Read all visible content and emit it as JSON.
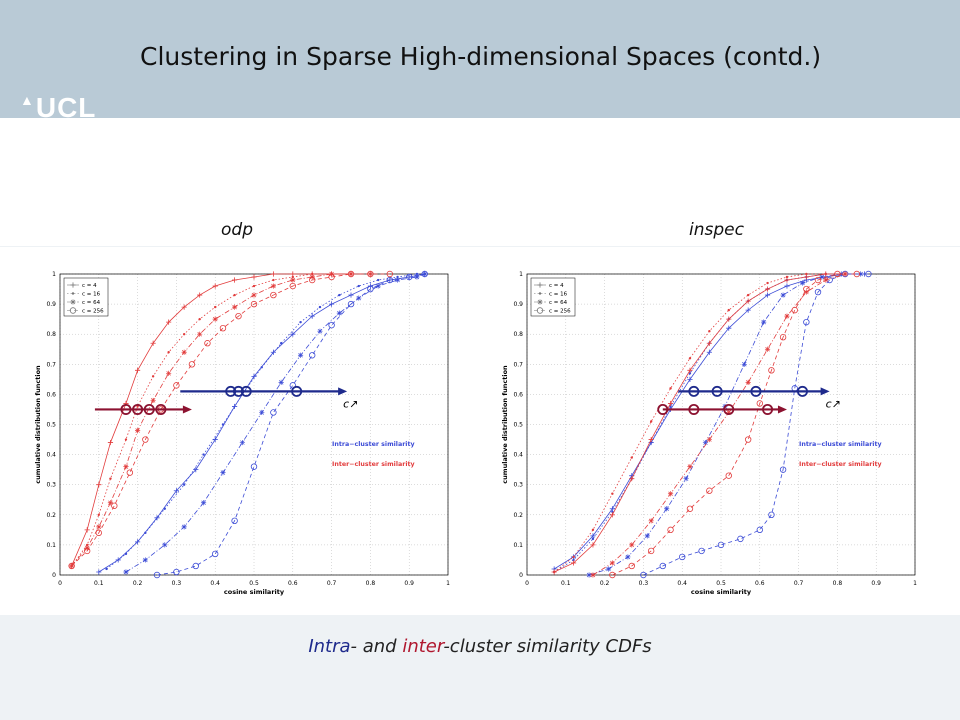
{
  "slide": {
    "title": "Clustering in Sparse High-dimensional Spaces (contd.)",
    "logo_text": "UCL",
    "caption": {
      "part1": "Intra",
      "part2": "- and ",
      "part3": "inter",
      "part4": "-cluster similarity CDFs"
    }
  },
  "colors": {
    "intra": "#3b4bd6",
    "inter": "#e23c3c",
    "arrow_intra": "#1e2a8c",
    "arrow_inter": "#8c1230"
  },
  "chart_data": [
    {
      "type": "line",
      "title": "odp",
      "xlabel": "cosine similarity",
      "ylabel": "cumulative distribution function",
      "xlim": [
        0,
        1
      ],
      "ylim": [
        0,
        1
      ],
      "xticks": [
        "0",
        "0.1",
        "0.2",
        "0.3",
        "0.4",
        "0.5",
        "0.6",
        "0.7",
        "0.8",
        "0.9",
        "1"
      ],
      "yticks": [
        "0",
        "0.1",
        "0.2",
        "0.3",
        "0.4",
        "0.5",
        "0.6",
        "0.7",
        "0.8",
        "0.9",
        "1"
      ],
      "grid": true,
      "legend": {
        "placement": "top-left",
        "entries": [
          "c = 4",
          "c = 16",
          "c = 64",
          "c = 256"
        ]
      },
      "annotations": [
        "Intra−cluster similarity",
        "Inter−cluster similarity"
      ],
      "arrow_label": "c↗",
      "series": [
        {
          "group": "intra",
          "marker": "plus",
          "x": [
            0.1,
            0.15,
            0.2,
            0.25,
            0.3,
            0.35,
            0.4,
            0.45,
            0.5,
            0.55,
            0.6,
            0.65,
            0.7,
            0.75,
            0.8,
            0.85,
            0.9,
            0.94
          ],
          "y": [
            0.01,
            0.05,
            0.11,
            0.19,
            0.28,
            0.35,
            0.45,
            0.56,
            0.66,
            0.74,
            0.8,
            0.86,
            0.9,
            0.93,
            0.96,
            0.98,
            0.99,
            1.0
          ]
        },
        {
          "group": "intra",
          "marker": "dot",
          "x": [
            0.12,
            0.17,
            0.22,
            0.27,
            0.32,
            0.37,
            0.42,
            0.47,
            0.52,
            0.57,
            0.62,
            0.67,
            0.72,
            0.77,
            0.82,
            0.87,
            0.92,
            0.94
          ],
          "y": [
            0.02,
            0.07,
            0.14,
            0.22,
            0.3,
            0.4,
            0.5,
            0.6,
            0.69,
            0.77,
            0.84,
            0.89,
            0.93,
            0.96,
            0.98,
            0.99,
            1.0,
            1.0
          ]
        },
        {
          "group": "intra",
          "marker": "star",
          "x": [
            0.17,
            0.22,
            0.27,
            0.32,
            0.37,
            0.42,
            0.47,
            0.52,
            0.57,
            0.62,
            0.67,
            0.72,
            0.77,
            0.82,
            0.87,
            0.92,
            0.94
          ],
          "y": [
            0.01,
            0.05,
            0.1,
            0.16,
            0.24,
            0.34,
            0.44,
            0.54,
            0.64,
            0.73,
            0.81,
            0.87,
            0.92,
            0.96,
            0.98,
            0.99,
            1.0
          ]
        },
        {
          "group": "intra",
          "marker": "circle",
          "x": [
            0.25,
            0.3,
            0.35,
            0.4,
            0.45,
            0.5,
            0.55,
            0.6,
            0.65,
            0.7,
            0.75,
            0.8,
            0.85,
            0.9,
            0.94
          ],
          "y": [
            0.0,
            0.01,
            0.03,
            0.07,
            0.18,
            0.36,
            0.54,
            0.63,
            0.73,
            0.83,
            0.9,
            0.95,
            0.98,
            0.99,
            1.0
          ]
        },
        {
          "group": "inter",
          "marker": "plus",
          "x": [
            0.03,
            0.07,
            0.1,
            0.13,
            0.17,
            0.2,
            0.24,
            0.28,
            0.32,
            0.36,
            0.4,
            0.45,
            0.5,
            0.55,
            0.6,
            0.65,
            0.7,
            0.75
          ],
          "y": [
            0.03,
            0.15,
            0.3,
            0.44,
            0.57,
            0.68,
            0.77,
            0.84,
            0.89,
            0.93,
            0.96,
            0.98,
            0.99,
            1.0,
            1.0,
            1.0,
            1.0,
            1.0
          ]
        },
        {
          "group": "inter",
          "marker": "dot",
          "x": [
            0.03,
            0.07,
            0.1,
            0.13,
            0.17,
            0.2,
            0.24,
            0.28,
            0.32,
            0.36,
            0.4,
            0.45,
            0.5,
            0.55,
            0.6,
            0.65,
            0.7,
            0.75
          ],
          "y": [
            0.03,
            0.1,
            0.2,
            0.32,
            0.45,
            0.56,
            0.66,
            0.74,
            0.8,
            0.85,
            0.89,
            0.93,
            0.96,
            0.98,
            0.99,
            1.0,
            1.0,
            1.0
          ]
        },
        {
          "group": "inter",
          "marker": "star",
          "x": [
            0.03,
            0.07,
            0.1,
            0.13,
            0.17,
            0.2,
            0.24,
            0.28,
            0.32,
            0.36,
            0.4,
            0.45,
            0.5,
            0.55,
            0.6,
            0.65,
            0.7,
            0.75,
            0.8
          ],
          "y": [
            0.03,
            0.09,
            0.16,
            0.24,
            0.36,
            0.48,
            0.58,
            0.67,
            0.74,
            0.8,
            0.85,
            0.89,
            0.93,
            0.96,
            0.98,
            0.99,
            1.0,
            1.0,
            1.0
          ]
        },
        {
          "group": "inter",
          "marker": "circle",
          "x": [
            0.03,
            0.07,
            0.1,
            0.14,
            0.18,
            0.22,
            0.26,
            0.3,
            0.34,
            0.38,
            0.42,
            0.46,
            0.5,
            0.55,
            0.6,
            0.65,
            0.7,
            0.75,
            0.8,
            0.85
          ],
          "y": [
            0.03,
            0.08,
            0.14,
            0.23,
            0.34,
            0.45,
            0.55,
            0.63,
            0.7,
            0.77,
            0.82,
            0.86,
            0.9,
            0.93,
            0.96,
            0.98,
            0.99,
            1.0,
            1.0,
            1.0
          ]
        }
      ],
      "arrows": [
        {
          "group": "intra",
          "y": 0.61,
          "x_from": 0.31,
          "x_to": 0.74,
          "circles_x": [
            0.44,
            0.46,
            0.48,
            0.61
          ]
        },
        {
          "group": "inter",
          "y": 0.55,
          "x_from": 0.09,
          "x_to": 0.34,
          "circles_x": [
            0.17,
            0.2,
            0.23,
            0.26
          ]
        }
      ]
    },
    {
      "type": "line",
      "title": "inspec",
      "xlabel": "cosine similarity",
      "ylabel": "cumulative distribution function",
      "xlim": [
        0,
        1
      ],
      "ylim": [
        0,
        1
      ],
      "xticks": [
        "0",
        "0.1",
        "0.2",
        "0.3",
        "0.4",
        "0.5",
        "0.6",
        "0.7",
        "0.8",
        "0.9",
        "1"
      ],
      "yticks": [
        "0",
        "0.1",
        "0.2",
        "0.3",
        "0.4",
        "0.5",
        "0.6",
        "0.7",
        "0.8",
        "0.9",
        "1"
      ],
      "grid": true,
      "legend": {
        "placement": "top-left",
        "entries": [
          "c = 4",
          "c = 16",
          "c = 64",
          "c = 256"
        ]
      },
      "annotations": [
        "Intra−cluster similarity",
        "Inter−cluster similarity"
      ],
      "arrow_label": "c↗",
      "series": [
        {
          "group": "intra",
          "marker": "plus",
          "x": [
            0.07,
            0.12,
            0.17,
            0.22,
            0.27,
            0.32,
            0.37,
            0.42,
            0.47,
            0.52,
            0.57,
            0.62,
            0.67,
            0.72,
            0.77,
            0.82,
            0.87
          ],
          "y": [
            0.02,
            0.06,
            0.13,
            0.22,
            0.33,
            0.44,
            0.55,
            0.65,
            0.74,
            0.82,
            0.88,
            0.93,
            0.96,
            0.98,
            0.99,
            1.0,
            1.0
          ]
        },
        {
          "group": "intra",
          "marker": "dot",
          "x": [
            0.07,
            0.12,
            0.17,
            0.22,
            0.27,
            0.32,
            0.37,
            0.42,
            0.47,
            0.52,
            0.57,
            0.62,
            0.67,
            0.72,
            0.77,
            0.82
          ],
          "y": [
            0.01,
            0.05,
            0.12,
            0.21,
            0.32,
            0.44,
            0.56,
            0.67,
            0.77,
            0.85,
            0.91,
            0.95,
            0.98,
            0.99,
            1.0,
            1.0
          ]
        },
        {
          "group": "intra",
          "marker": "star",
          "x": [
            0.16,
            0.21,
            0.26,
            0.31,
            0.36,
            0.41,
            0.46,
            0.51,
            0.56,
            0.61,
            0.66,
            0.71,
            0.76,
            0.81,
            0.86
          ],
          "y": [
            0.0,
            0.02,
            0.06,
            0.13,
            0.22,
            0.32,
            0.44,
            0.56,
            0.7,
            0.84,
            0.93,
            0.97,
            0.99,
            1.0,
            1.0
          ]
        },
        {
          "group": "intra",
          "marker": "circle",
          "x": [
            0.3,
            0.35,
            0.4,
            0.45,
            0.5,
            0.55,
            0.6,
            0.63,
            0.66,
            0.69,
            0.72,
            0.75,
            0.78,
            0.82,
            0.88
          ],
          "y": [
            0.0,
            0.03,
            0.06,
            0.08,
            0.1,
            0.12,
            0.15,
            0.2,
            0.35,
            0.62,
            0.84,
            0.94,
            0.98,
            1.0,
            1.0
          ]
        },
        {
          "group": "inter",
          "marker": "plus",
          "x": [
            0.07,
            0.12,
            0.17,
            0.22,
            0.27,
            0.32,
            0.37,
            0.42,
            0.47,
            0.52,
            0.57,
            0.62,
            0.67,
            0.72,
            0.77,
            0.82
          ],
          "y": [
            0.01,
            0.04,
            0.1,
            0.2,
            0.32,
            0.45,
            0.57,
            0.68,
            0.77,
            0.85,
            0.91,
            0.95,
            0.98,
            0.99,
            1.0,
            1.0
          ]
        },
        {
          "group": "inter",
          "marker": "dot",
          "x": [
            0.07,
            0.12,
            0.17,
            0.22,
            0.27,
            0.32,
            0.37,
            0.42,
            0.47,
            0.52,
            0.57,
            0.62,
            0.67,
            0.72,
            0.77
          ],
          "y": [
            0.01,
            0.06,
            0.15,
            0.27,
            0.39,
            0.51,
            0.62,
            0.72,
            0.81,
            0.88,
            0.93,
            0.97,
            0.99,
            1.0,
            1.0
          ]
        },
        {
          "group": "inter",
          "marker": "star",
          "x": [
            0.17,
            0.22,
            0.27,
            0.32,
            0.37,
            0.42,
            0.47,
            0.52,
            0.57,
            0.62,
            0.67,
            0.72,
            0.77,
            0.82
          ],
          "y": [
            0.0,
            0.04,
            0.1,
            0.18,
            0.27,
            0.36,
            0.45,
            0.54,
            0.64,
            0.75,
            0.86,
            0.94,
            0.98,
            1.0
          ]
        },
        {
          "group": "inter",
          "marker": "circle",
          "x": [
            0.22,
            0.27,
            0.32,
            0.37,
            0.42,
            0.47,
            0.52,
            0.57,
            0.6,
            0.63,
            0.66,
            0.69,
            0.72,
            0.75,
            0.8,
            0.85
          ],
          "y": [
            0.0,
            0.03,
            0.08,
            0.15,
            0.22,
            0.28,
            0.33,
            0.45,
            0.57,
            0.68,
            0.79,
            0.88,
            0.95,
            0.98,
            1.0,
            1.0
          ]
        }
      ],
      "arrows": [
        {
          "group": "intra",
          "y": 0.61,
          "x_from": 0.39,
          "x_to": 0.78,
          "circles_x": [
            0.43,
            0.49,
            0.59,
            0.71
          ]
        },
        {
          "group": "inter",
          "y": 0.55,
          "x_from": 0.35,
          "x_to": 0.67,
          "circles_x": [
            0.35,
            0.43,
            0.52,
            0.62
          ]
        }
      ]
    }
  ]
}
